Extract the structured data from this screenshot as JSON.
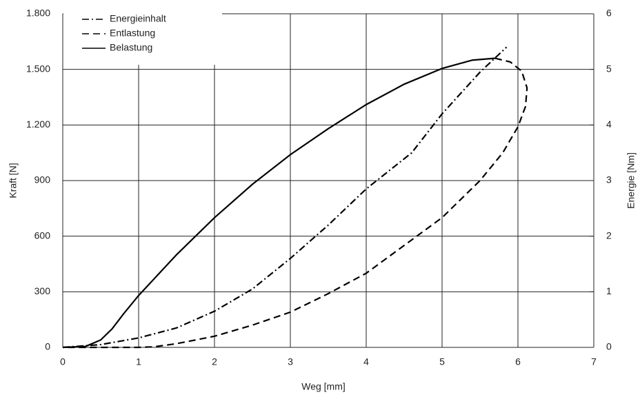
{
  "chart_data": {
    "type": "line",
    "xlabel": "Weg [mm]",
    "ylabel": "Kraft [N]",
    "y2label": "Energie [Nm]",
    "xlim": [
      0,
      7
    ],
    "xticks": [
      0,
      1,
      2,
      3,
      4,
      5,
      6,
      7
    ],
    "ylim": [
      0,
      1800
    ],
    "yticks": [
      0,
      300,
      600,
      900,
      {
        "value": 1200,
        "label": "1.200"
      },
      {
        "value": 1500,
        "label": "1.500"
      },
      {
        "value": 1800,
        "label": "1.800"
      }
    ],
    "y2lim": [
      0,
      6
    ],
    "y2ticks": [
      0,
      1,
      2,
      3,
      4,
      5,
      6
    ],
    "grid": true,
    "legend": "upper left",
    "series": [
      {
        "name": "Energieinhalt",
        "color": "#000000",
        "line_style": "dashdot",
        "axis": "y2",
        "x": [
          0,
          0.5,
          1,
          1.5,
          2,
          2.5,
          3,
          3.5,
          4,
          4.6,
          5,
          5.5,
          5.85
        ],
        "values": [
          0,
          0.05,
          0.17,
          0.35,
          0.65,
          1.05,
          1.6,
          2.2,
          2.85,
          3.5,
          4.2,
          4.95,
          5.4
        ]
      },
      {
        "name": "Entlastung",
        "color": "#000000",
        "line_style": "dashed",
        "x": [
          5.7,
          5.9,
          6.05,
          6.12,
          6.1,
          6.0,
          5.8,
          5.5,
          5,
          4.5,
          4,
          3.5,
          3,
          2.5,
          2,
          1.5,
          1.2,
          1,
          0
        ],
        "values": [
          1560,
          1540,
          1490,
          1400,
          1300,
          1190,
          1050,
          900,
          700,
          550,
          400,
          290,
          190,
          120,
          60,
          20,
          3,
          0,
          0
        ]
      },
      {
        "name": "Belastung",
        "color": "#000000",
        "line_style": "solid",
        "x": [
          0,
          0.3,
          0.5,
          0.65,
          0.8,
          1,
          1.5,
          2,
          2.5,
          3,
          3.5,
          4,
          4.5,
          5,
          5.4,
          5.7
        ],
        "values": [
          0,
          5,
          40,
          100,
          180,
          280,
          500,
          700,
          880,
          1040,
          1180,
          1310,
          1420,
          1505,
          1550,
          1560
        ]
      }
    ]
  }
}
